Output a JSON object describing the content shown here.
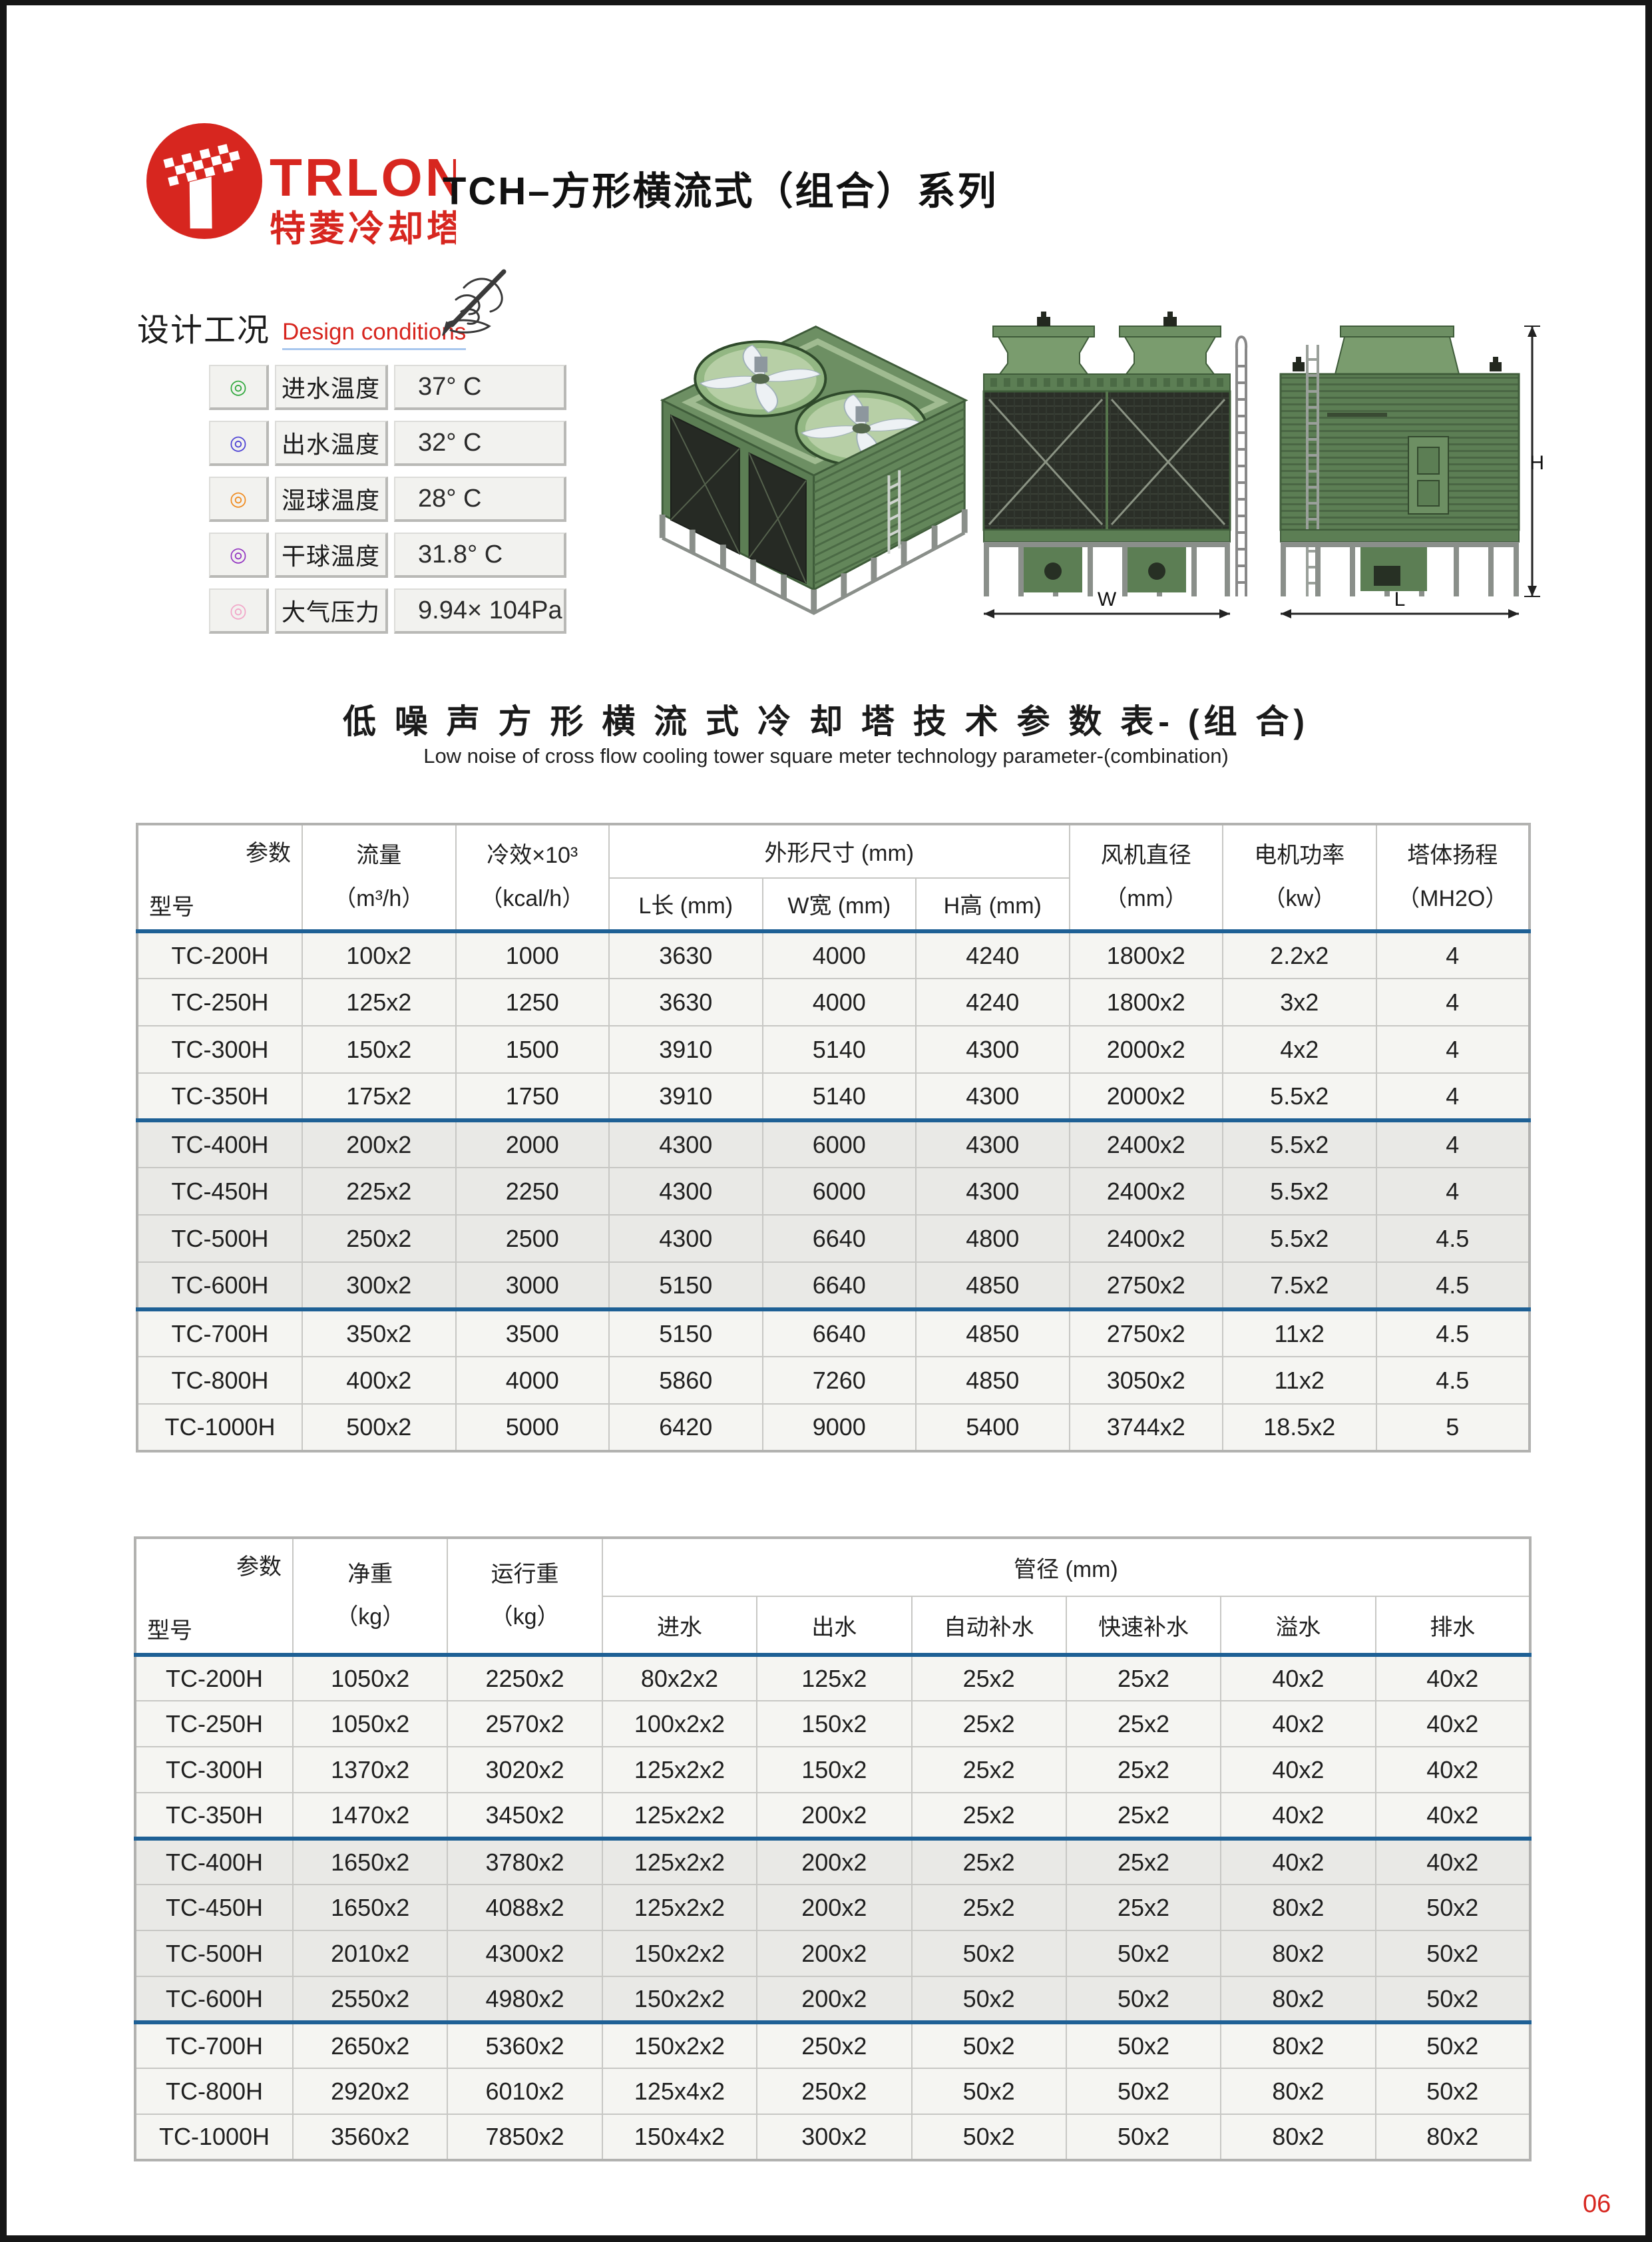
{
  "brand": {
    "name": "TRLON",
    "tagline": "特菱冷却塔"
  },
  "page_title": "TCH–方形横流式（组合）系列",
  "design": {
    "heading_cn": "设计工况",
    "heading_en": "Design conditions",
    "items": [
      {
        "label": "进水温度",
        "value": "37° C",
        "color": "#2fa83c",
        "icon": "◎"
      },
      {
        "label": "出水温度",
        "value": "32° C",
        "color": "#4a3fd4",
        "icon": "◎"
      },
      {
        "label": "湿球温度",
        "value": "28° C",
        "color": "#f08a1d",
        "icon": "◎"
      },
      {
        "label": "干球温度",
        "value": "31.8° C",
        "color": "#9437c2",
        "icon": "◎"
      },
      {
        "label": "大气压力",
        "value": "9.94× 104Pa",
        "color": "#f2a6c8",
        "icon": "◎"
      }
    ]
  },
  "figures": {
    "front_width_label": "W",
    "side_length_label": "L",
    "side_height_label": "H"
  },
  "section": {
    "title_cn": "低 噪 声 方 形 横 流 式 冷 却 塔 技 术 参 数 表- (组 合)",
    "title_en": "Low noise  of cross flow cooling tower square meter technology parameter-(combination)"
  },
  "table1": {
    "corner_top": "参数",
    "corner_bottom": "型号",
    "headers": {
      "flow_1": "流量",
      "flow_2": "（m³/h）",
      "cooling_1": "冷效×10³",
      "cooling_2": "（kcal/h）",
      "dims_group": "外形尺寸 (mm)",
      "dim_l": "L长 (mm)",
      "dim_w": "W宽 (mm)",
      "dim_h": "H高 (mm)",
      "fan_1": "风机直径",
      "fan_2": "（mm）",
      "motor_1": "电机功率",
      "motor_2": "（kw）",
      "head_1": "塔体扬程",
      "head_2": "（MH2O）"
    },
    "rows": [
      {
        "blue": true,
        "group": "light",
        "cells": [
          "TC-200H",
          "100x2",
          "1000",
          "3630",
          "4000",
          "4240",
          "1800x2",
          "2.2x2",
          "4"
        ]
      },
      {
        "group": "light",
        "cells": [
          "TC-250H",
          "125x2",
          "1250",
          "3630",
          "4000",
          "4240",
          "1800x2",
          "3x2",
          "4"
        ]
      },
      {
        "group": "light",
        "cells": [
          "TC-300H",
          "150x2",
          "1500",
          "3910",
          "5140",
          "4300",
          "2000x2",
          "4x2",
          "4"
        ]
      },
      {
        "group": "light",
        "cells": [
          "TC-350H",
          "175x2",
          "1750",
          "3910",
          "5140",
          "4300",
          "2000x2",
          "5.5x2",
          "4"
        ]
      },
      {
        "blue": true,
        "group": "dark",
        "cells": [
          "TC-400H",
          "200x2",
          "2000",
          "4300",
          "6000",
          "4300",
          "2400x2",
          "5.5x2",
          "4"
        ]
      },
      {
        "group": "dark",
        "cells": [
          "TC-450H",
          "225x2",
          "2250",
          "4300",
          "6000",
          "4300",
          "2400x2",
          "5.5x2",
          "4"
        ]
      },
      {
        "group": "dark",
        "cells": [
          "TC-500H",
          "250x2",
          "2500",
          "4300",
          "6640",
          "4800",
          "2400x2",
          "5.5x2",
          "4.5"
        ]
      },
      {
        "group": "dark",
        "cells": [
          "TC-600H",
          "300x2",
          "3000",
          "5150",
          "6640",
          "4850",
          "2750x2",
          "7.5x2",
          "4.5"
        ]
      },
      {
        "blue": true,
        "group": "light",
        "cells": [
          "TC-700H",
          "350x2",
          "3500",
          "5150",
          "6640",
          "4850",
          "2750x2",
          "11x2",
          "4.5"
        ]
      },
      {
        "group": "light",
        "cells": [
          "TC-800H",
          "400x2",
          "4000",
          "5860",
          "7260",
          "4850",
          "3050x2",
          "11x2",
          "4.5"
        ]
      },
      {
        "group": "light",
        "cells": [
          "TC-1000H",
          "500x2",
          "5000",
          "6420",
          "9000",
          "5400",
          "3744x2",
          "18.5x2",
          "5"
        ]
      }
    ]
  },
  "table2": {
    "corner_top": "参数",
    "corner_bottom": "型号",
    "headers": {
      "net_1": "净重",
      "net_2": "（kg）",
      "run_1": "运行重",
      "run_2": "（kg）",
      "pipes_group": "管径 (mm)",
      "pipe_in": "进水",
      "pipe_out": "出水",
      "pipe_auto": "自动补水",
      "pipe_quick": "快速补水",
      "pipe_overflow": "溢水",
      "pipe_drain": "排水"
    },
    "rows": [
      {
        "blue": true,
        "group": "light",
        "cells": [
          "TC-200H",
          "1050x2",
          "2250x2",
          "80x2x2",
          "125x2",
          "25x2",
          "25x2",
          "40x2",
          "40x2"
        ]
      },
      {
        "group": "light",
        "cells": [
          "TC-250H",
          "1050x2",
          "2570x2",
          "100x2x2",
          "150x2",
          "25x2",
          "25x2",
          "40x2",
          "40x2"
        ]
      },
      {
        "group": "light",
        "cells": [
          "TC-300H",
          "1370x2",
          "3020x2",
          "125x2x2",
          "150x2",
          "25x2",
          "25x2",
          "40x2",
          "40x2"
        ]
      },
      {
        "group": "light",
        "cells": [
          "TC-350H",
          "1470x2",
          "3450x2",
          "125x2x2",
          "200x2",
          "25x2",
          "25x2",
          "40x2",
          "40x2"
        ]
      },
      {
        "blue": true,
        "group": "dark",
        "cells": [
          "TC-400H",
          "1650x2",
          "3780x2",
          "125x2x2",
          "200x2",
          "25x2",
          "25x2",
          "40x2",
          "40x2"
        ]
      },
      {
        "group": "dark",
        "cells": [
          "TC-450H",
          "1650x2",
          "4088x2",
          "125x2x2",
          "200x2",
          "25x2",
          "25x2",
          "80x2",
          "50x2"
        ]
      },
      {
        "group": "dark",
        "cells": [
          "TC-500H",
          "2010x2",
          "4300x2",
          "150x2x2",
          "200x2",
          "50x2",
          "50x2",
          "80x2",
          "50x2"
        ]
      },
      {
        "group": "dark",
        "cells": [
          "TC-600H",
          "2550x2",
          "4980x2",
          "150x2x2",
          "200x2",
          "50x2",
          "50x2",
          "80x2",
          "50x2"
        ]
      },
      {
        "blue": true,
        "group": "light",
        "cells": [
          "TC-700H",
          "2650x2",
          "5360x2",
          "150x2x2",
          "250x2",
          "50x2",
          "50x2",
          "80x2",
          "50x2"
        ]
      },
      {
        "group": "light",
        "cells": [
          "TC-800H",
          "2920x2",
          "6010x2",
          "125x4x2",
          "250x2",
          "50x2",
          "50x2",
          "80x2",
          "50x2"
        ]
      },
      {
        "group": "light",
        "cells": [
          "TC-1000H",
          "3560x2",
          "7850x2",
          "150x4x2",
          "300x2",
          "50x2",
          "50x2",
          "80x2",
          "80x2"
        ]
      }
    ]
  },
  "page_number": "06"
}
